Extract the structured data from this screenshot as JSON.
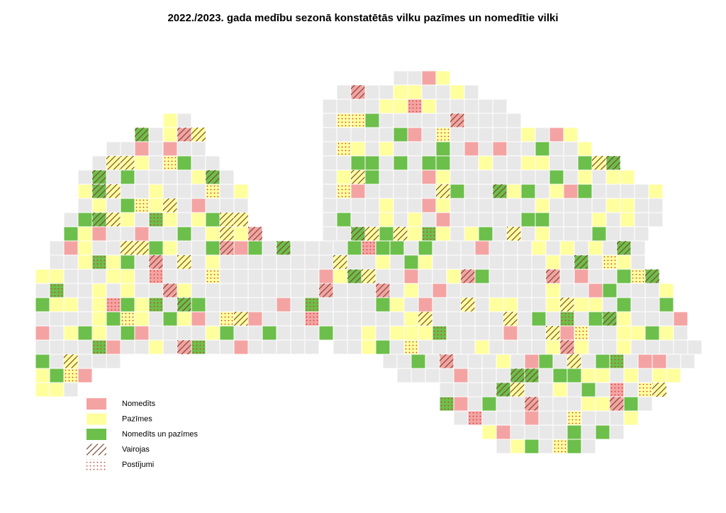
{
  "title": "2022./2023. gada medību sezonā konstatētās vilku pazīmes un nomedītie vilki",
  "legend": [
    {
      "name": "Nomedīts"
    },
    {
      "name": "Pazīmes"
    },
    {
      "name": "Nomedīts un pazīmes"
    },
    {
      "name": "Vairojas"
    },
    {
      "name": "Postījumi"
    }
  ]
}
